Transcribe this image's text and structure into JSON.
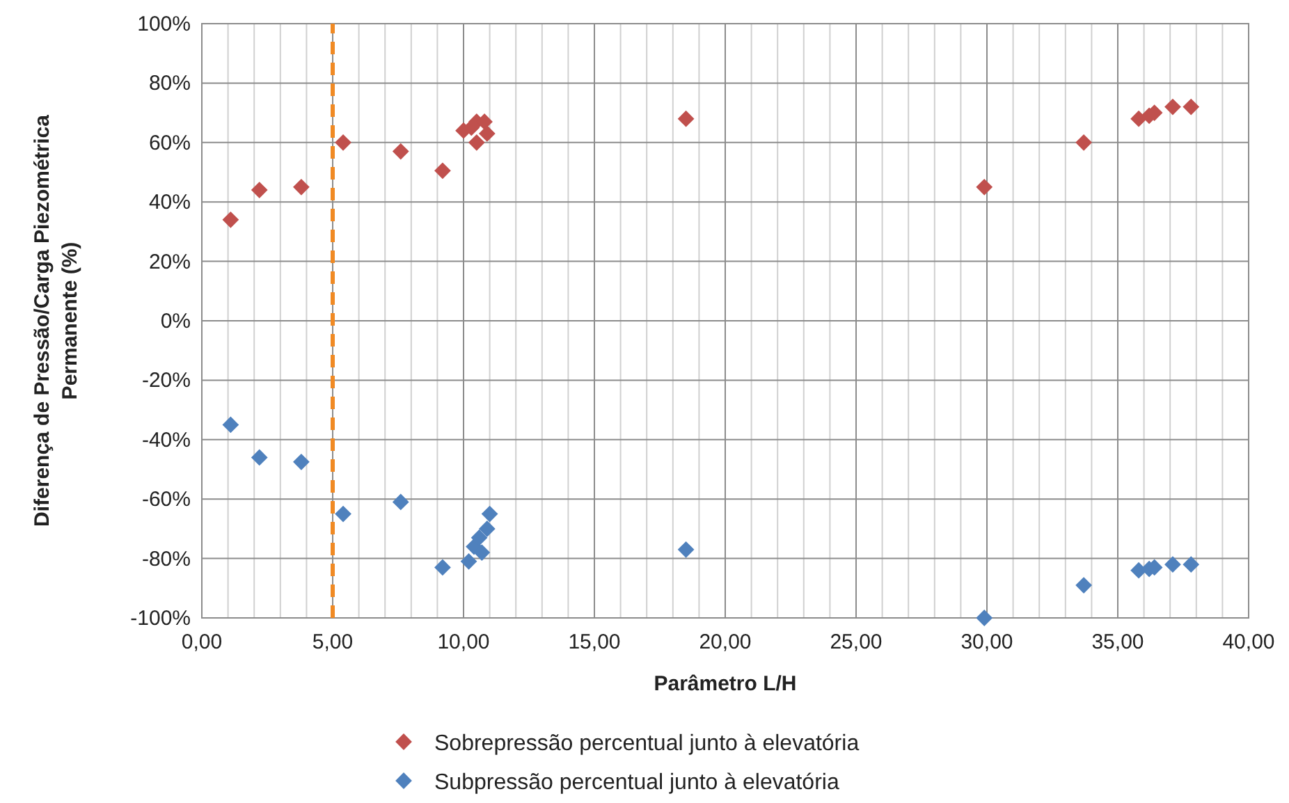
{
  "chart_data": {
    "type": "scatter",
    "xlabel": "Parâmetro L/H",
    "ylabel": "Diferença de Pressão/Carga Piezométrica Permanente (%)",
    "xlim": [
      0,
      40
    ],
    "xticks": [
      {
        "value": 0,
        "label": "0,00"
      },
      {
        "value": 5,
        "label": "5,00"
      },
      {
        "value": 10,
        "label": "10,00"
      },
      {
        "value": 15,
        "label": "15,00"
      },
      {
        "value": 20,
        "label": "20,00"
      },
      {
        "value": 25,
        "label": "25,00"
      },
      {
        "value": 30,
        "label": "30,00"
      },
      {
        "value": 35,
        "label": "35,00"
      },
      {
        "value": 40,
        "label": "40,00"
      }
    ],
    "ylim": [
      -100,
      100
    ],
    "yticks": [
      {
        "value": -100,
        "label": "-100%"
      },
      {
        "value": -80,
        "label": "-80%"
      },
      {
        "value": -60,
        "label": "-60%"
      },
      {
        "value": -40,
        "label": "-40%"
      },
      {
        "value": -20,
        "label": "-20%"
      },
      {
        "value": 0,
        "label": "0%"
      },
      {
        "value": 20,
        "label": "20%"
      },
      {
        "value": 40,
        "label": "40%"
      },
      {
        "value": 60,
        "label": "60%"
      },
      {
        "value": 80,
        "label": "80%"
      },
      {
        "value": 100,
        "label": "100%"
      }
    ],
    "grid": true,
    "legend": "bottom",
    "marker": "diamond",
    "series": [
      {
        "name": "Sobrepressão percentual junto à elevatória",
        "color": "#c0504d",
        "x": [
          1.1,
          2.2,
          3.8,
          5.4,
          7.6,
          9.2,
          10.0,
          10.3,
          10.5,
          10.5,
          10.8,
          10.9,
          18.5,
          29.9,
          33.7,
          35.8,
          36.2,
          36.4,
          37.1,
          37.8
        ],
        "values": [
          34,
          44,
          45,
          60,
          57,
          50.5,
          64,
          65,
          67,
          60,
          67,
          63,
          68,
          45,
          60,
          68,
          69,
          70,
          72,
          72
        ]
      },
      {
        "name": "Subpressão percentual junto à elevatória",
        "color": "#4f81bd",
        "x": [
          1.1,
          2.2,
          3.8,
          5.4,
          7.6,
          9.2,
          10.2,
          10.4,
          10.6,
          10.7,
          10.9,
          11.0,
          18.5,
          29.9,
          33.7,
          35.8,
          36.2,
          36.4,
          37.1,
          37.8
        ],
        "values": [
          -35,
          -46,
          -47.5,
          -65,
          -61,
          -83,
          -81,
          -76,
          -73,
          -78,
          -70,
          -65,
          -77,
          -100,
          -89,
          -84,
          -83.5,
          -83,
          -82,
          -82
        ]
      }
    ],
    "ref_lines": [
      {
        "axis": "x",
        "value": 5,
        "color": "#f08a24",
        "line_style": "dashed"
      }
    ]
  }
}
